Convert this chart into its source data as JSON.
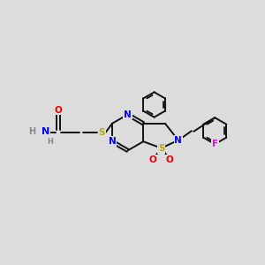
{
  "bg_color": "#dcdcdc",
  "bond_color": "#111111",
  "bond_width": 1.4,
  "dbo": 0.055,
  "atom_colors": {
    "N": "#0000ee",
    "S": "#bbaa00",
    "O": "#ee0000",
    "F": "#ee00ee",
    "H": "#888888",
    "C": "#111111"
  },
  "fs": 7.5
}
